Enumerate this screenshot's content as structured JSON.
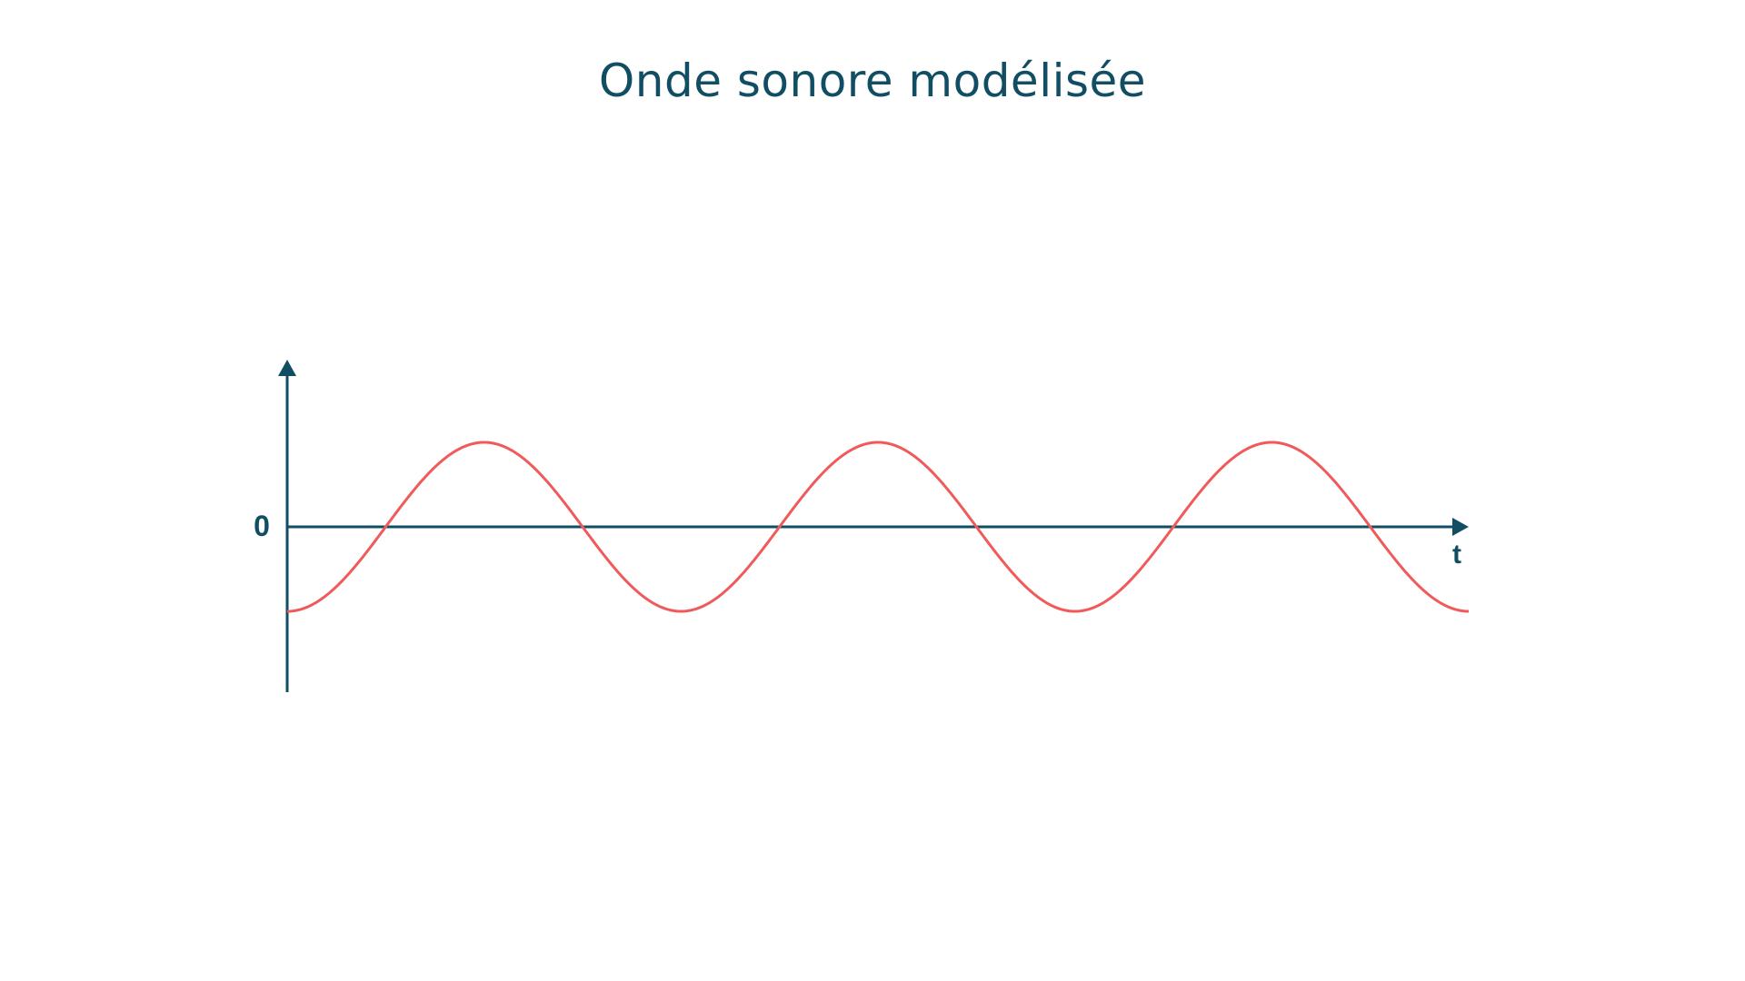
{
  "chart_data": {
    "type": "line",
    "title": "Onde sonore modélisée",
    "xlabel": "t",
    "ylabel": "",
    "origin_label": "0",
    "y_ticks": [
      0
    ],
    "xlim": [
      0,
      3
    ],
    "ylim": [
      -2,
      2
    ],
    "grid": false,
    "legend": "none",
    "function": "y = -cos(2πt)",
    "series": [
      {
        "color": "#f05a5a",
        "x": [
          0,
          0.125,
          0.25,
          0.375,
          0.5,
          0.625,
          0.75,
          0.875,
          1,
          1.125,
          1.25,
          1.375,
          1.5,
          1.625,
          1.75,
          1.875,
          2,
          2.125,
          2.25,
          2.375,
          2.5,
          2.625,
          2.75,
          2.875,
          3
        ],
        "values": [
          -1,
          -0.71,
          0,
          0.71,
          1,
          0.71,
          0,
          -0.71,
          -1,
          -0.71,
          0,
          0.71,
          1,
          0.71,
          0,
          -0.71,
          -1,
          -0.71,
          0,
          0.71,
          1,
          0.71,
          0,
          -0.71,
          -1
        ]
      }
    ]
  },
  "colors": {
    "axis": "#124e63",
    "curve": "#f05a5a",
    "title": "#124e63"
  }
}
